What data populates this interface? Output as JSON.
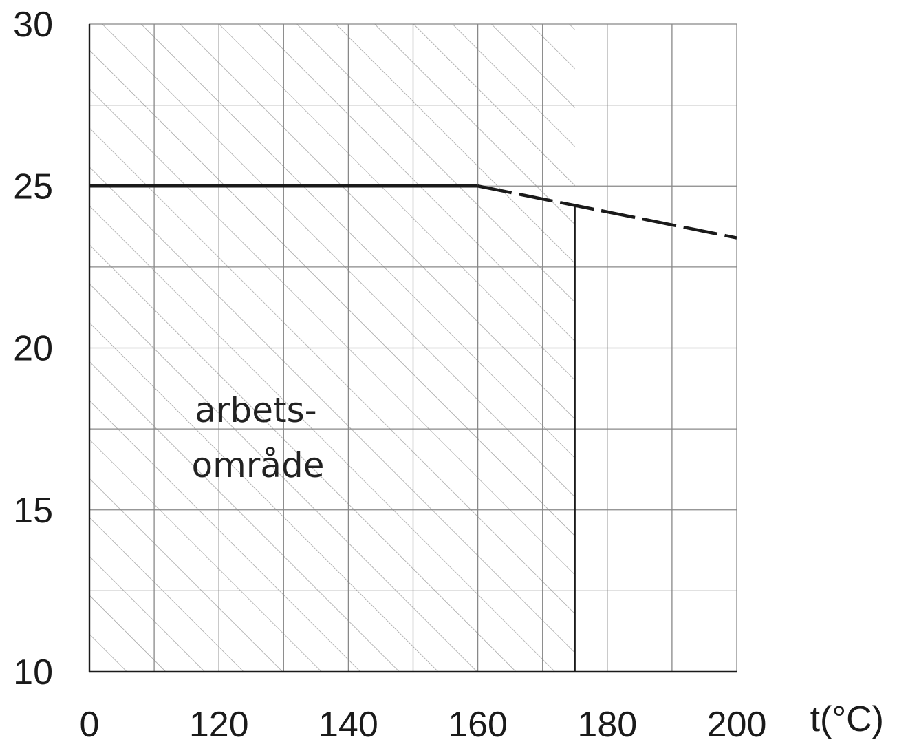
{
  "chart_data": {
    "type": "line",
    "title": "",
    "xlabel": "t(°C)",
    "ylabel": "",
    "x_tick_labels": [
      "0",
      "120",
      "140",
      "160",
      "180",
      "200"
    ],
    "y_tick_labels": [
      "30",
      "25",
      "20",
      "15",
      "10"
    ],
    "xlim": [
      0,
      200
    ],
    "ylim": [
      10,
      30
    ],
    "grid": true,
    "series": [
      {
        "style": "solid",
        "points": [
          {
            "x": 0,
            "y": 25
          },
          {
            "x": 120,
            "y": 25
          }
        ]
      },
      {
        "style": "dashed",
        "points": [
          {
            "x": 120,
            "y": 25
          },
          {
            "x": 200,
            "y": 23.4
          }
        ]
      }
    ],
    "annotations": [
      {
        "line1": "arbets-",
        "line2": "område"
      }
    ],
    "shaded_region": {
      "x_from": 0,
      "x_to": 150,
      "pattern": "hatched",
      "label_index": 0
    },
    "colors": {
      "line": "#1a1a1a",
      "grid": "#888888",
      "hatch": "#9a9a9a"
    }
  }
}
